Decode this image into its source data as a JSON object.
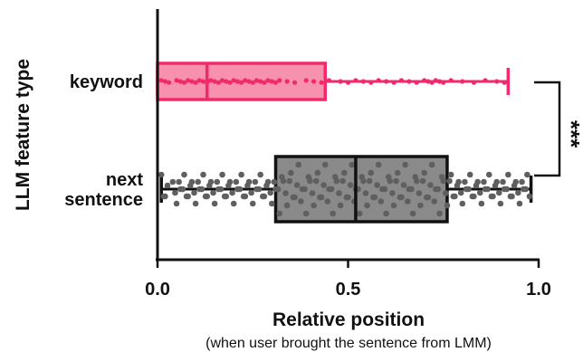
{
  "chart_data": {
    "type": "box",
    "title": "",
    "xlabel": "Relative position",
    "xlabel_sub": "(when user brought the sentence from LMM)",
    "ylabel": "LLM feature type",
    "xlim": [
      0,
      1
    ],
    "xticks": [
      "0.0",
      "0.5",
      "1.0"
    ],
    "xtick_values": [
      0,
      0.5,
      1.0
    ],
    "significance": "***",
    "colors": {
      "keyword_fill": "#f891ad",
      "keyword_stroke": "#f22a6c",
      "next_fill": "#8a8a8a",
      "next_stroke": "#111111",
      "next_dots": "#5f5f5f",
      "axis": "#111111"
    },
    "series": [
      {
        "name": "keyword",
        "category_label": [
          "keyword"
        ],
        "min": 0.0,
        "q1": 0.0,
        "median": 0.13,
        "q3": 0.44,
        "max": 0.92,
        "points": [
          0.01,
          0.02,
          0.03,
          0.05,
          0.06,
          0.07,
          0.08,
          0.09,
          0.1,
          0.11,
          0.12,
          0.13,
          0.14,
          0.15,
          0.16,
          0.17,
          0.18,
          0.19,
          0.2,
          0.21,
          0.22,
          0.23,
          0.24,
          0.25,
          0.26,
          0.27,
          0.28,
          0.29,
          0.3,
          0.31,
          0.32,
          0.34,
          0.36,
          0.39,
          0.41,
          0.43,
          0.45,
          0.48,
          0.5,
          0.52,
          0.54,
          0.56,
          0.58,
          0.6,
          0.62,
          0.64,
          0.66,
          0.68,
          0.7,
          0.71,
          0.72,
          0.73,
          0.74,
          0.75,
          0.77,
          0.8,
          0.83,
          0.86,
          0.89,
          0.91
        ]
      },
      {
        "name": "next sentence",
        "category_label": [
          "next",
          "sentence"
        ],
        "min": 0.01,
        "q1": 0.31,
        "median": 0.52,
        "q3": 0.76,
        "max": 0.98,
        "points": [
          0.01,
          0.02,
          0.04,
          0.05,
          0.06,
          0.07,
          0.08,
          0.09,
          0.1,
          0.11,
          0.12,
          0.13,
          0.14,
          0.15,
          0.16,
          0.17,
          0.18,
          0.19,
          0.2,
          0.21,
          0.22,
          0.23,
          0.24,
          0.25,
          0.26,
          0.27,
          0.28,
          0.29,
          0.3,
          0.31,
          0.32,
          0.33,
          0.34,
          0.35,
          0.36,
          0.37,
          0.38,
          0.39,
          0.4,
          0.41,
          0.42,
          0.43,
          0.44,
          0.45,
          0.46,
          0.47,
          0.48,
          0.49,
          0.5,
          0.51,
          0.52,
          0.53,
          0.54,
          0.55,
          0.56,
          0.57,
          0.58,
          0.59,
          0.6,
          0.61,
          0.62,
          0.63,
          0.64,
          0.65,
          0.66,
          0.67,
          0.68,
          0.69,
          0.7,
          0.71,
          0.72,
          0.73,
          0.74,
          0.75,
          0.76,
          0.77,
          0.78,
          0.79,
          0.8,
          0.81,
          0.82,
          0.83,
          0.84,
          0.85,
          0.86,
          0.87,
          0.88,
          0.89,
          0.9,
          0.91,
          0.92,
          0.93,
          0.94,
          0.95,
          0.96,
          0.97
        ]
      }
    ]
  }
}
